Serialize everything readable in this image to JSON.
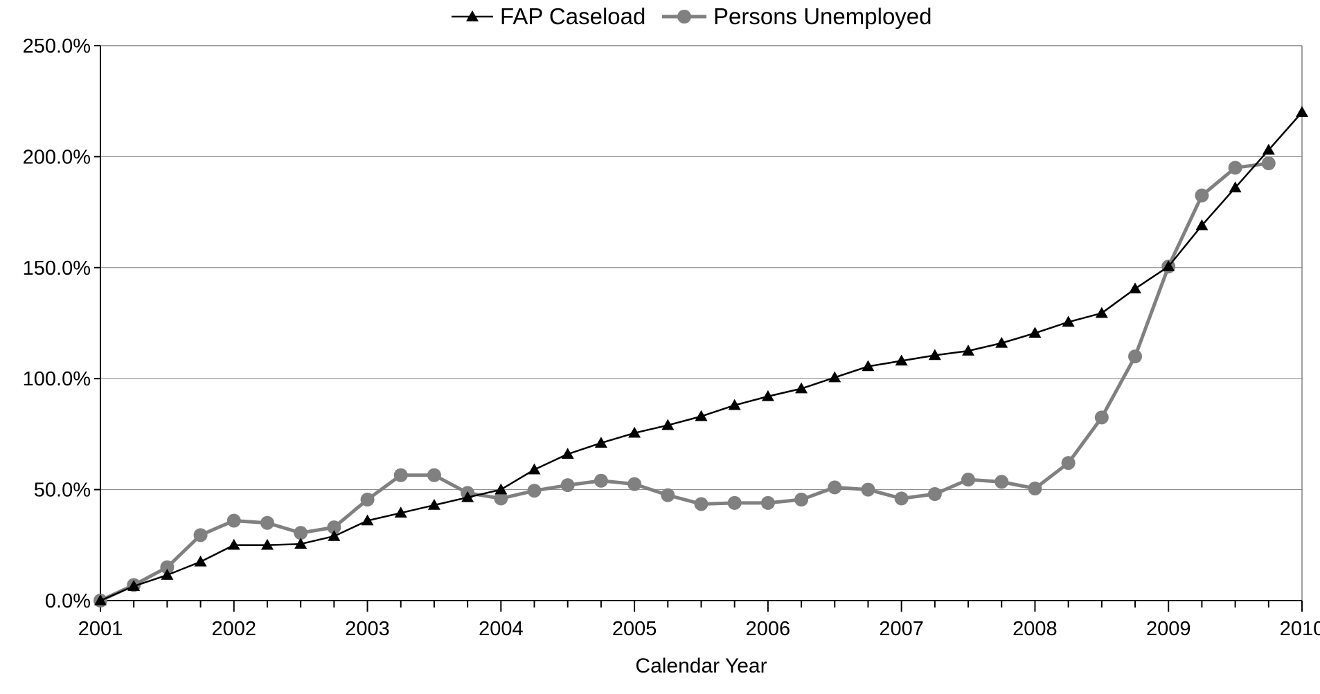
{
  "chart_data": {
    "type": "line",
    "xlabel": "Calendar Year",
    "ylabel": "",
    "ylim": [
      0,
      250
    ],
    "y_ticks": [
      0,
      50,
      100,
      150,
      200,
      250
    ],
    "y_tick_labels": [
      "0.0%",
      "50.0%",
      "100.0%",
      "150.0%",
      "200.0%",
      "250.0%"
    ],
    "xlim": [
      2001,
      2010
    ],
    "x_tick_labels": [
      "2001",
      "2002",
      "2003",
      "2004",
      "2005",
      "2006",
      "2007",
      "2008",
      "2009",
      "2010"
    ],
    "x_minor_ticks_per_year": 4,
    "grid": "horizontal",
    "legend": "top-center",
    "series": [
      {
        "name": "FAP Caseload",
        "color": "#000000",
        "marker": "triangle",
        "x": [
          2001,
          2001.25,
          2001.5,
          2001.75,
          2002,
          2002.25,
          2002.5,
          2002.75,
          2003,
          2003.25,
          2003.5,
          2003.75,
          2004,
          2004.25,
          2004.5,
          2004.75,
          2005,
          2005.25,
          2005.5,
          2005.75,
          2006,
          2006.25,
          2006.5,
          2006.75,
          2007,
          2007.25,
          2007.5,
          2007.75,
          2008,
          2008.25,
          2008.5,
          2008.75,
          2009,
          2009.25,
          2009.5,
          2009.75,
          2010
        ],
        "values": [
          0,
          6.5,
          11.5,
          17.5,
          25,
          25,
          25.5,
          29,
          36,
          39.5,
          43,
          46.5,
          50,
          59,
          66,
          71,
          75.5,
          79,
          83,
          88,
          92,
          95.5,
          100.5,
          105.5,
          108,
          110.5,
          112.5,
          116,
          120.5,
          125.5,
          129.5,
          140.5,
          150.5,
          169,
          186,
          203,
          220
        ]
      },
      {
        "name": "Persons Unemployed",
        "color": "#808080",
        "marker": "circle",
        "x": [
          2001,
          2001.25,
          2001.5,
          2001.75,
          2002,
          2002.25,
          2002.5,
          2002.75,
          2003,
          2003.25,
          2003.5,
          2003.75,
          2004,
          2004.25,
          2004.5,
          2004.75,
          2005,
          2005.25,
          2005.5,
          2005.75,
          2006,
          2006.25,
          2006.5,
          2006.75,
          2007,
          2007.25,
          2007.5,
          2007.75,
          2008,
          2008.25,
          2008.5,
          2008.75,
          2009,
          2009.25,
          2009.5,
          2009.75
        ],
        "values": [
          0,
          7,
          15,
          29.5,
          36,
          35,
          30.5,
          33,
          45.5,
          56.5,
          56.5,
          48.5,
          46,
          49.5,
          52,
          54,
          52.5,
          47.5,
          43.5,
          44,
          44,
          45.5,
          51,
          50,
          46,
          48,
          54.5,
          53.5,
          50.5,
          62,
          82.5,
          110,
          150.5,
          182.5,
          195,
          197
        ]
      }
    ]
  }
}
